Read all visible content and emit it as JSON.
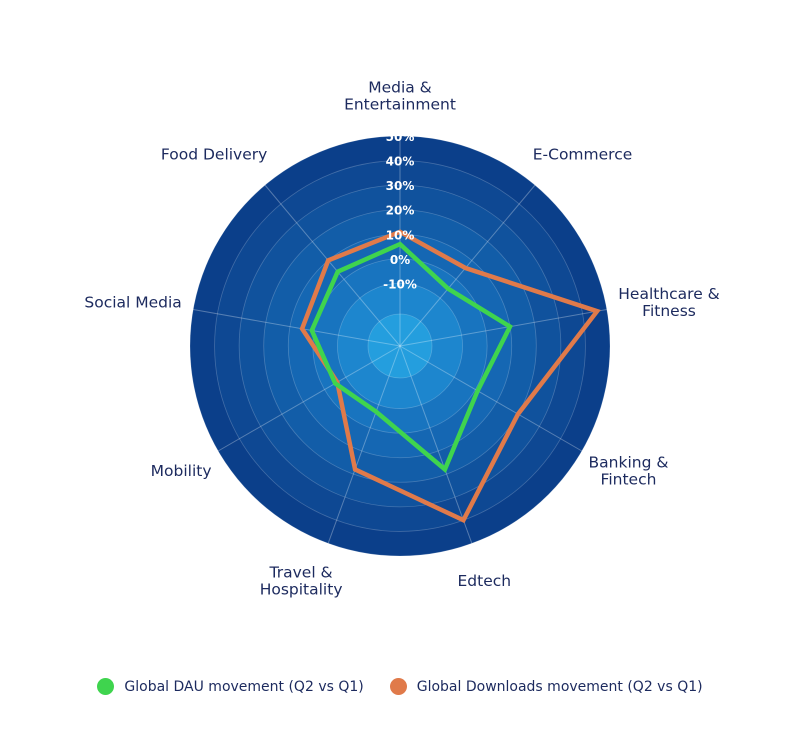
{
  "chart_data": {
    "type": "radar",
    "title": "",
    "categories": [
      "Media & Entertainment",
      "E-Commerce",
      "Healthcare & Fitness",
      "Banking & Fintech",
      "Edtech",
      "Travel & Hospitality",
      "Mobility",
      "Social Media",
      "Food Delivery"
    ],
    "axis_label_lines": [
      [
        "Media &",
        "Entertainment"
      ],
      [
        "E-Commerce"
      ],
      [
        "Healthcare &",
        "Fitness"
      ],
      [
        "Banking &",
        "Fintech"
      ],
      [
        "Edtech"
      ],
      [
        "Travel &",
        "Hospitality"
      ],
      [
        "Mobility"
      ],
      [
        "Social Media"
      ],
      [
        "Food Delivery"
      ]
    ],
    "ticks": [
      -10,
      0,
      10,
      20,
      30,
      40,
      50
    ],
    "tick_labels": [
      "-10%",
      "0%",
      "10%",
      "20%",
      "30%",
      "40%",
      "50%"
    ],
    "rlim": [
      -20,
      50
    ],
    "grid": true,
    "legend_position": "bottom",
    "series": [
      {
        "name": "Global DAU movement (Q2 vs Q1)",
        "color": "#3fd44e",
        "values": [
          6,
          -5,
          10,
          1,
          18,
          -7,
          -5,
          1,
          4
        ]
      },
      {
        "name": "Global Downloads movement (Q2 vs Q1)",
        "color": "#e07a4a",
        "values": [
          11,
          6,
          46,
          20,
          40,
          18,
          -6,
          5,
          10
        ]
      }
    ],
    "ring_colors": [
      "#0b3f8a",
      "#0e4893",
      "#10529d",
      "#125da8",
      "#1567b3",
      "#1874bf",
      "#1d86ce",
      "#249ede"
    ]
  }
}
